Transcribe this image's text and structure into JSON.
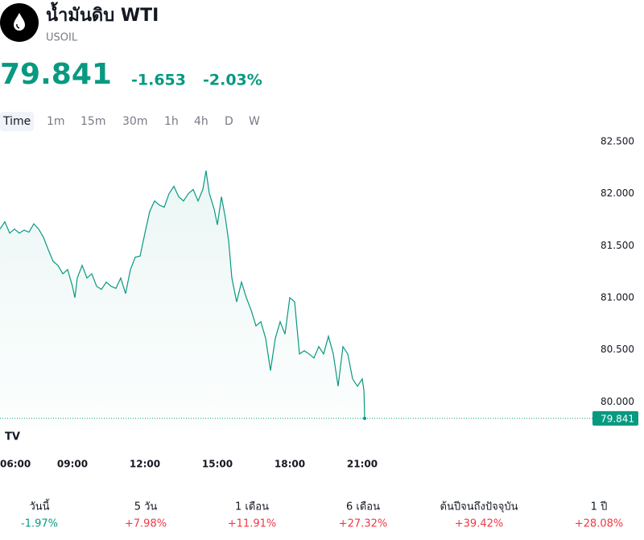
{
  "header": {
    "title": "น้ำมันดิบ WTI",
    "symbol": "USOIL",
    "price": "79.841",
    "change": "-1.653",
    "change_percent": "-2.03%",
    "color": "#089981"
  },
  "intervals": [
    "Time",
    "1m",
    "15m",
    "30m",
    "1h",
    "4h",
    "D",
    "W"
  ],
  "chart_data": {
    "type": "line",
    "x": [
      6.0,
      6.2,
      6.4,
      6.6,
      6.8,
      7.0,
      7.2,
      7.4,
      7.6,
      7.8,
      8.0,
      8.2,
      8.4,
      8.6,
      8.8,
      9.0,
      9.1,
      9.2,
      9.4,
      9.6,
      9.8,
      10.0,
      10.2,
      10.4,
      10.6,
      10.8,
      11.0,
      11.2,
      11.4,
      11.6,
      11.8,
      12.0,
      12.2,
      12.4,
      12.6,
      12.8,
      13.0,
      13.2,
      13.4,
      13.6,
      13.8,
      14.0,
      14.2,
      14.4,
      14.53,
      14.67,
      14.87,
      15.0,
      15.17,
      15.33,
      15.47,
      15.6,
      15.8,
      16.0,
      16.2,
      16.4,
      16.6,
      16.8,
      17.0,
      17.2,
      17.4,
      17.6,
      17.8,
      18.0,
      18.2,
      18.4,
      18.6,
      18.8,
      19.0,
      19.2,
      19.4,
      19.6,
      19.8,
      20.0,
      20.2,
      20.4,
      20.6,
      20.8,
      21.0,
      21.07,
      21.1
    ],
    "series": [
      {
        "name": "USOIL",
        "color": "#089981",
        "values": [
          81.66,
          81.73,
          81.62,
          81.66,
          81.62,
          81.65,
          81.63,
          81.71,
          81.66,
          81.58,
          81.46,
          81.35,
          81.31,
          81.23,
          81.27,
          81.11,
          81.0,
          81.19,
          81.31,
          81.19,
          81.23,
          81.11,
          81.08,
          81.15,
          81.11,
          81.09,
          81.19,
          81.04,
          81.27,
          81.39,
          81.4,
          81.62,
          81.83,
          81.93,
          81.89,
          81.87,
          82.0,
          82.07,
          81.97,
          81.93,
          82.0,
          82.04,
          81.93,
          82.04,
          82.22,
          82.0,
          81.85,
          81.7,
          81.97,
          81.77,
          81.54,
          81.19,
          80.96,
          81.15,
          81.0,
          80.88,
          80.73,
          80.77,
          80.61,
          80.3,
          80.61,
          80.77,
          80.65,
          81.0,
          80.96,
          80.46,
          80.49,
          80.46,
          80.42,
          80.53,
          80.46,
          80.63,
          80.46,
          80.15,
          80.53,
          80.46,
          80.22,
          80.15,
          80.22,
          80.11,
          79.841
        ]
      }
    ],
    "xlim": [
      6,
      30.5
    ],
    "xticks": [
      {
        "value": 6,
        "label": "06:00"
      },
      {
        "value": 9,
        "label": "09:00"
      },
      {
        "value": 12,
        "label": "12:00"
      },
      {
        "value": 15,
        "label": "15:00"
      },
      {
        "value": 18,
        "label": "18:00"
      },
      {
        "value": 21,
        "label": "21:00"
      }
    ],
    "ylim": [
      79.6,
      82.6
    ],
    "yticks": [
      {
        "value": 80,
        "label": "80.000"
      },
      {
        "value": 80.5,
        "label": "80.500"
      },
      {
        "value": 81,
        "label": "81.000"
      },
      {
        "value": 81.5,
        "label": "81.500"
      },
      {
        "value": 82,
        "label": "82.000"
      },
      {
        "value": 82.5,
        "label": "82.500"
      }
    ],
    "grid": false
  },
  "performance": [
    {
      "period": "วันนี้",
      "change": "-1.97%",
      "color": "#089981"
    },
    {
      "period": "5 วัน",
      "change": "+7.98%",
      "color": "#f23645"
    },
    {
      "period": "1 เดือน",
      "change": "+11.91%",
      "color": "#f23645"
    },
    {
      "period": "6 เดือน",
      "change": "+27.32%",
      "color": "#f23645"
    },
    {
      "period": "ต้นปีจนถึงปัจจุบัน",
      "change": "+39.42%",
      "color": "#f23645"
    },
    {
      "period": "1 ปี",
      "change": "+28.08%",
      "color": "#f23645"
    }
  ]
}
